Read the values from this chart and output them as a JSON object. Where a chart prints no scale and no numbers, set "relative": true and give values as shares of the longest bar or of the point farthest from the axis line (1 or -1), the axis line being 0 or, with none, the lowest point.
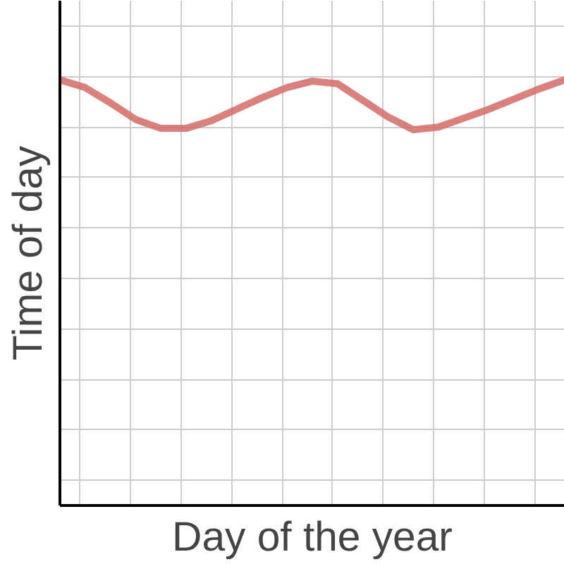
{
  "chart_data": {
    "type": "line",
    "relative": true,
    "xlabel": "Day of the year",
    "ylabel": "Time of day",
    "grid": true,
    "marker": "none",
    "line_style": "solid",
    "categories": [
      null,
      null,
      null,
      null,
      null,
      null,
      null,
      null,
      null,
      null,
      null,
      null,
      null,
      null,
      null,
      null,
      null,
      null,
      null,
      null,
      null
    ],
    "series": [
      {
        "color": "#d46a66",
        "values": [
          1.0,
          0.982,
          0.946,
          0.907,
          0.886,
          0.886,
          0.904,
          0.931,
          0.958,
          0.982,
          0.997,
          0.991,
          0.952,
          0.913,
          0.883,
          0.889,
          0.91,
          0.931,
          0.955,
          0.979,
          1.0
        ]
      }
    ]
  }
}
